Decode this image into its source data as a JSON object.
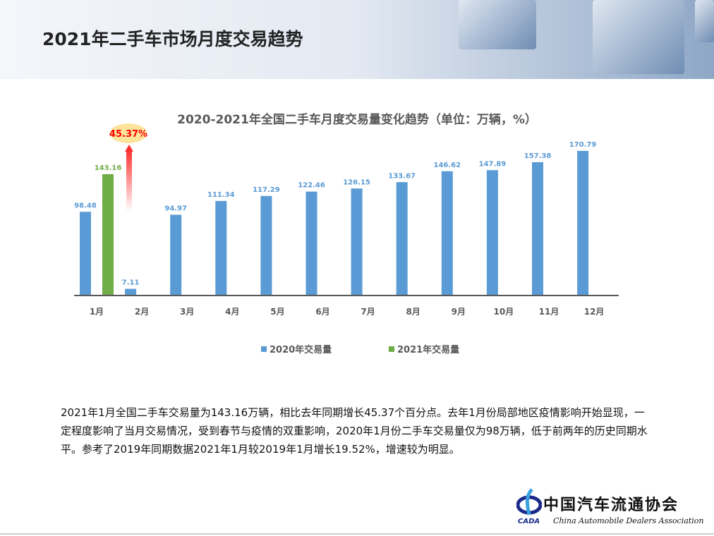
{
  "page_title": "2021年二手车市场月度交易趋势",
  "chart_data": {
    "type": "bar",
    "title": "2020-2021年全国二手车月度交易量变化趋势（单位：万辆，%）",
    "categories": [
      "1月",
      "2月",
      "3月",
      "4月",
      "5月",
      "6月",
      "7月",
      "8月",
      "9月",
      "10月",
      "11月",
      "12月"
    ],
    "series": [
      {
        "name": "2020年交易量",
        "color": "#5b9bd5",
        "values": [
          98.48,
          7.11,
          94.97,
          111.34,
          117.29,
          122.46,
          126.15,
          133.67,
          146.62,
          147.89,
          157.38,
          170.79
        ]
      },
      {
        "name": "2021年交易量",
        "color": "#70ad47",
        "values": [
          143.16,
          null,
          null,
          null,
          null,
          null,
          null,
          null,
          null,
          null,
          null,
          null
        ]
      }
    ],
    "annotation": {
      "text": "45.37%",
      "color": "#ff0000",
      "badge_color": "#fde49b"
    },
    "ylim": [
      0,
      180
    ],
    "grid": false,
    "legend": "bottom"
  },
  "description": "2021年1月全国二手车交易量为143.16万辆，相比去年同期增长45.37个百分点。去年1月份局部地区疫情影响开始显现，一定程度影响了当月交易情况，受到春节与疫情的双重影响，2020年1月份二手车交易量仅为98万辆，低于前两年的历史同期水平。参考了2019年同期数据2021年1月较2019年1月增长19.52%，增速较为明显。",
  "logo": {
    "cn": "中国汽车流通协会",
    "en": "China Automobile Dealers Association",
    "abbr": "CADA"
  }
}
